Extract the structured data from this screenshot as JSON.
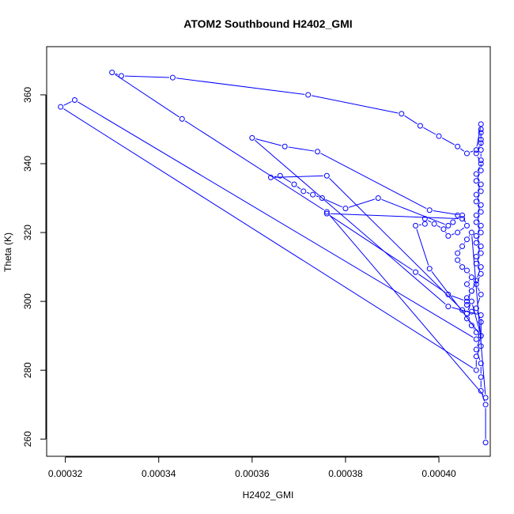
{
  "chart_data": {
    "type": "line",
    "title": "ATOM2 Southbound H2402_GMI",
    "xlabel": "H2402_GMI",
    "ylabel": "Theta (K)",
    "xlim": [
      0.000316,
      0.000411
    ],
    "ylim": [
      255,
      374
    ],
    "x_ticks": [
      "0.00032",
      "0.00034",
      "0.00036",
      "0.00038",
      "0.00040"
    ],
    "x_tick_values": [
      0.00032,
      0.00034,
      0.00036,
      0.00038,
      0.0004
    ],
    "y_ticks": [
      "260",
      "280",
      "300",
      "320",
      "340",
      "360"
    ],
    "y_tick_values": [
      260,
      280,
      300,
      320,
      340,
      360
    ],
    "grid": false,
    "legend": "none",
    "color": "#0000ff",
    "series": [
      {
        "points": [
          [
            0.00041,
            259
          ],
          [
            0.00041,
            270
          ],
          [
            0.000409,
            274
          ],
          [
            0.000409,
            278
          ],
          [
            0.000409,
            282
          ],
          [
            0.000408,
            286
          ],
          [
            0.000409,
            290
          ],
          [
            0.000409,
            294
          ],
          [
            0.000408,
            298
          ],
          [
            0.000409,
            302
          ],
          [
            0.000408,
            305
          ],
          [
            0.000409,
            308
          ],
          [
            0.000408,
            311
          ],
          [
            0.000409,
            314
          ],
          [
            0.000408,
            317
          ],
          [
            0.000409,
            320
          ],
          [
            0.000408,
            323
          ],
          [
            0.000409,
            326
          ],
          [
            0.000408,
            329
          ],
          [
            0.000409,
            332
          ],
          [
            0.000408,
            335
          ],
          [
            0.000409,
            338
          ],
          [
            0.000409,
            341
          ],
          [
            0.000409,
            344
          ],
          [
            0.000409,
            347
          ],
          [
            0.000409,
            350
          ],
          [
            0.000409,
            351.5
          ],
          [
            0.000408,
            344
          ],
          [
            0.000406,
            343
          ],
          [
            0.000404,
            345
          ],
          [
            0.0004,
            348
          ],
          [
            0.000396,
            351
          ],
          [
            0.000392,
            354.5
          ],
          [
            0.000372,
            360
          ],
          [
            0.000343,
            365
          ],
          [
            0.000332,
            365.5
          ],
          [
            0.00033,
            366.5
          ],
          [
            0.000345,
            353
          ],
          [
            0.000376,
            326
          ],
          [
            0.00041,
            272
          ],
          [
            0.000407,
            320
          ],
          [
            0.000406,
            318
          ],
          [
            0.000405,
            316
          ],
          [
            0.000404,
            314
          ],
          [
            0.000404,
            312
          ],
          [
            0.000405,
            310
          ],
          [
            0.000406,
            309
          ],
          [
            0.000407,
            307
          ],
          [
            0.000406,
            305
          ],
          [
            0.000407,
            303
          ],
          [
            0.000406,
            301
          ],
          [
            0.000406,
            299
          ],
          [
            0.000407,
            297
          ],
          [
            0.000406,
            295
          ],
          [
            0.000407,
            293
          ],
          [
            0.000408,
            291
          ],
          [
            0.000408,
            289
          ],
          [
            0.000322,
            358.5
          ],
          [
            0.000319,
            356.5
          ],
          [
            0.000408,
            280
          ],
          [
            0.000408,
            284
          ],
          [
            0.000409,
            287
          ],
          [
            0.000409,
            296
          ],
          [
            0.000402,
            298.5
          ],
          [
            0.00036,
            347.5
          ],
          [
            0.000367,
            345
          ],
          [
            0.000374,
            343.5
          ],
          [
            0.000398,
            326.5
          ],
          [
            0.000405,
            325
          ],
          [
            0.000406,
            322
          ],
          [
            0.000404,
            320
          ],
          [
            0.000402,
            319
          ],
          [
            0.000401,
            321
          ],
          [
            0.000399,
            322.5
          ],
          [
            0.000397,
            324
          ],
          [
            0.000397,
            322.5
          ],
          [
            0.000395,
            322
          ],
          [
            0.000398,
            309.5
          ],
          [
            0.000409,
            290
          ],
          [
            0.000407,
            300
          ],
          [
            0.000406,
            296.5
          ],
          [
            0.000405,
            297.5
          ],
          [
            0.000376,
            336.5
          ],
          [
            0.000364,
            336
          ],
          [
            0.000366,
            336.5
          ],
          [
            0.000369,
            334
          ],
          [
            0.000371,
            332
          ],
          [
            0.000373,
            331
          ],
          [
            0.000375,
            330
          ],
          [
            0.00038,
            327
          ],
          [
            0.000387,
            330
          ],
          [
            0.000402,
            322
          ],
          [
            0.000403,
            323
          ],
          [
            0.000404,
            325
          ],
          [
            0.000405,
            324
          ],
          [
            0.000376,
            325.5
          ],
          [
            0.000395,
            308.5
          ],
          [
            0.000402,
            302
          ],
          [
            0.000406,
            300
          ],
          [
            0.000407,
            303
          ],
          [
            0.000408,
            306
          ],
          [
            0.000409,
            310
          ],
          [
            0.000408,
            313
          ],
          [
            0.000409,
            316
          ],
          [
            0.000408,
            319
          ],
          [
            0.000409,
            322
          ],
          [
            0.000408,
            325
          ],
          [
            0.000409,
            328
          ],
          [
            0.000408,
            331
          ],
          [
            0.000409,
            334
          ],
          [
            0.000408,
            337
          ],
          [
            0.000409,
            340
          ],
          [
            0.000408,
            343
          ],
          [
            0.000409,
            346
          ],
          [
            0.000409,
            349
          ]
        ]
      }
    ]
  }
}
